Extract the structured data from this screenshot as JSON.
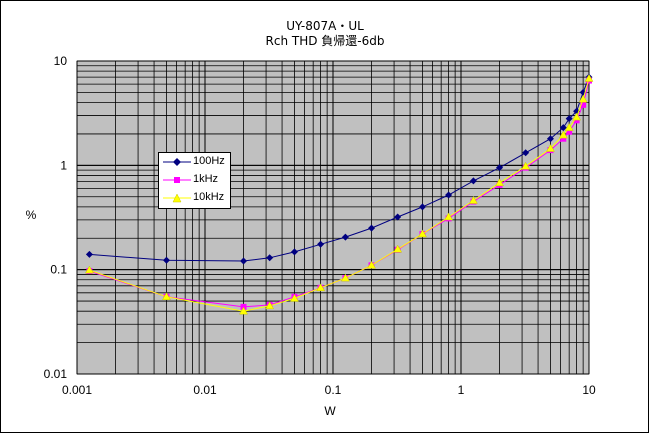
{
  "chart_data": {
    "type": "line",
    "title": "UY-807A・UL",
    "subtitle": "Rch THD 負帰還-6db",
    "xlabel": "W",
    "ylabel": "%",
    "xscale": "log",
    "yscale": "log",
    "xlim": [
      0.001,
      10
    ],
    "ylim": [
      0.01,
      10
    ],
    "x_ticks": [
      "0.001",
      "0.01",
      "0.1",
      "1",
      "10"
    ],
    "y_ticks": [
      "0.01",
      "0.1",
      "1",
      "10"
    ],
    "grid": true,
    "plot_background": "#c0c0c0",
    "legend_position": "left, inside plot",
    "series": [
      {
        "name": "100Hz",
        "color": "#000080",
        "marker": "diamond",
        "x": [
          0.00125,
          0.005,
          0.02,
          0.032,
          0.05,
          0.08,
          0.125,
          0.2,
          0.32,
          0.5,
          0.8,
          1.25,
          2,
          3.2,
          5,
          6.3,
          7,
          8,
          9,
          10
        ],
        "y": [
          0.14,
          0.123,
          0.121,
          0.13,
          0.148,
          0.175,
          0.205,
          0.25,
          0.32,
          0.4,
          0.52,
          0.71,
          0.95,
          1.32,
          1.8,
          2.3,
          2.8,
          3.3,
          5.0,
          7.0
        ]
      },
      {
        "name": "1kHz",
        "color": "#ff00ff",
        "marker": "square",
        "x": [
          0.00125,
          0.005,
          0.02,
          0.032,
          0.05,
          0.08,
          0.125,
          0.2,
          0.32,
          0.5,
          0.8,
          1.25,
          2,
          3.2,
          5,
          6.3,
          7,
          8,
          9,
          10
        ],
        "y": [
          0.097,
          0.055,
          0.044,
          0.046,
          0.055,
          0.067,
          0.083,
          0.11,
          0.155,
          0.22,
          0.31,
          0.45,
          0.65,
          0.95,
          1.4,
          1.8,
          2.1,
          2.7,
          3.8,
          6.5
        ]
      },
      {
        "name": "10kHz",
        "color": "#ffff00",
        "marker": "triangle",
        "x": [
          0.00125,
          0.005,
          0.02,
          0.032,
          0.05,
          0.08,
          0.125,
          0.2,
          0.32,
          0.5,
          0.8,
          1.25,
          2,
          3.2,
          5,
          6.3,
          7,
          8,
          9,
          10
        ],
        "y": [
          0.099,
          0.055,
          0.04,
          0.045,
          0.053,
          0.067,
          0.083,
          0.11,
          0.157,
          0.22,
          0.32,
          0.46,
          0.68,
          0.98,
          1.45,
          1.95,
          2.3,
          2.9,
          4.3,
          6.8
        ]
      }
    ]
  }
}
